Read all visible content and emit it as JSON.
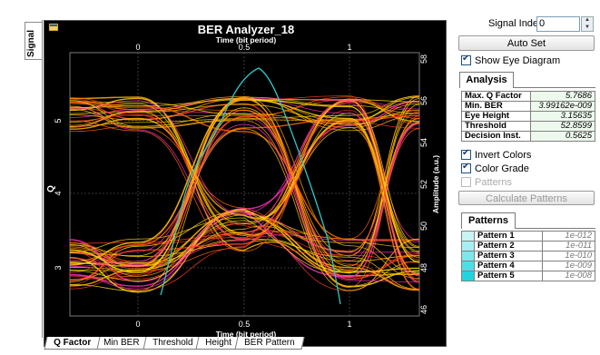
{
  "window": {
    "side_tab": "Signal"
  },
  "plot": {
    "title": "BER Analyzer_18",
    "top_axis_label": "Time (bit period)",
    "bottom_axis_label": "Time (bit period)",
    "left_axis_label": "Q",
    "right_axis_label": "Amplitude (a.u.)",
    "x_ticks_top": [
      "0",
      "0.5",
      "1"
    ],
    "x_ticks_bottom": [
      "0",
      "0.5",
      "1"
    ],
    "left_ticks": [
      "5",
      "4",
      "3"
    ],
    "right_ticks": [
      "58",
      "56",
      "54",
      "52",
      "50",
      "48",
      "46"
    ]
  },
  "bottom_tabs": [
    "Q Factor",
    "Min BER",
    "Threshold",
    "Height",
    "BER Pattern"
  ],
  "controls": {
    "signal_index_label": "Signal Index:",
    "signal_index_value": "0",
    "auto_set": "Auto Set",
    "show_eye": "Show Eye Diagram",
    "invert_colors": "Invert Colors",
    "color_grade": "Color Grade",
    "patterns_check": "Patterns",
    "calculate_patterns": "Calculate Patterns"
  },
  "analysis": {
    "tab": "Analysis",
    "rows": [
      {
        "k": "Max. Q Factor",
        "v": "5.7686"
      },
      {
        "k": "Min. BER",
        "v": "3.99162e-009"
      },
      {
        "k": "Eye Height",
        "v": "3.15635"
      },
      {
        "k": "Threshold",
        "v": "52.8599"
      },
      {
        "k": "Decision Inst.",
        "v": "0.5625"
      }
    ]
  },
  "patterns": {
    "tab": "Patterns",
    "rows": [
      {
        "k": "Pattern 1",
        "v": "1e-012",
        "color": "#c9f3f5"
      },
      {
        "k": "Pattern 2",
        "v": "1e-011",
        "color": "#a7eef2"
      },
      {
        "k": "Pattern 3",
        "v": "1e-010",
        "color": "#7fe6ec"
      },
      {
        "k": "Pattern 4",
        "v": "1e-009",
        "color": "#4fdde6"
      },
      {
        "k": "Pattern 5",
        "v": "1e-008",
        "color": "#22d4df"
      }
    ]
  },
  "colors": {
    "accent": "#1c5180",
    "trace_yellow": "#ffe000",
    "trace_red": "#ff2a2a",
    "trace_magenta": "#ff33cc",
    "q_curve": "#2fc6c6"
  }
}
